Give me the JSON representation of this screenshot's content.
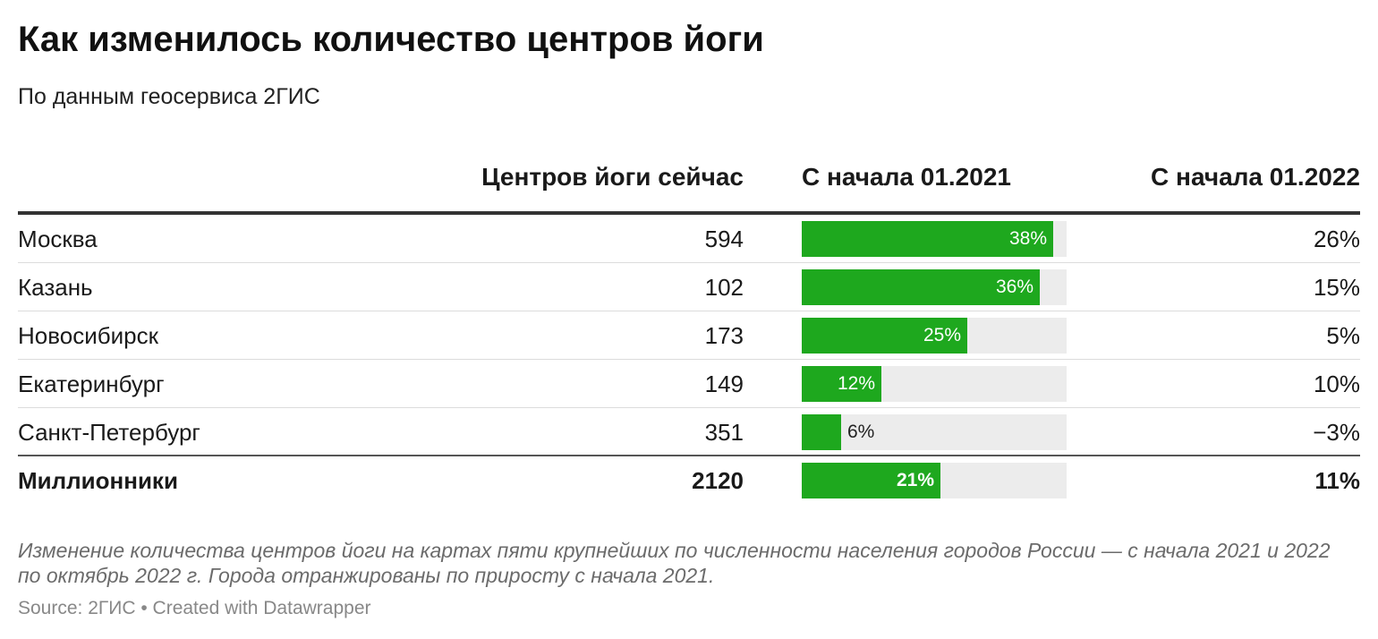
{
  "title": "Как изменилось количество центров йоги",
  "subtitle": "По данным геосервиса 2ГИС",
  "columns": {
    "now": "Центров йоги сейчас",
    "since2021": "С начала 01.2021",
    "since2022": "С начала 01.2022"
  },
  "colors": {
    "bar": "#1ea81e",
    "track": "#ececec"
  },
  "chart_data": {
    "type": "table",
    "columns": [
      "",
      "Центров йоги сейчас",
      "С начала 01.2021",
      "С начала 01.2022"
    ],
    "bar_max": 40,
    "rows": [
      {
        "city": "Москва",
        "now": "594",
        "g2021": 38,
        "g2021_label": "38%",
        "g2022": "26%"
      },
      {
        "city": "Казань",
        "now": "102",
        "g2021": 36,
        "g2021_label": "36%",
        "g2022": "15%"
      },
      {
        "city": "Новосибирск",
        "now": "173",
        "g2021": 25,
        "g2021_label": "25%",
        "g2022": "5%"
      },
      {
        "city": "Екатеринбург",
        "now": "149",
        "g2021": 12,
        "g2021_label": "12%",
        "g2022": "10%"
      },
      {
        "city": "Санкт-Петербург",
        "now": "351",
        "g2021": 6,
        "g2021_label": "6%",
        "g2022": "−3%"
      }
    ],
    "total": {
      "city": "Миллионники",
      "now": "2120",
      "g2021": 21,
      "g2021_label": "21%",
      "g2022": "11%"
    }
  },
  "note": "Изменение количества центров йоги на картах пяти крупнейших по численности населения городов России — с начала 2021 и 2022 по октябрь 2022 г. Города отранжированы по приросту с начала 2021.",
  "source": "Source: 2ГИС • Created with Datawrapper"
}
